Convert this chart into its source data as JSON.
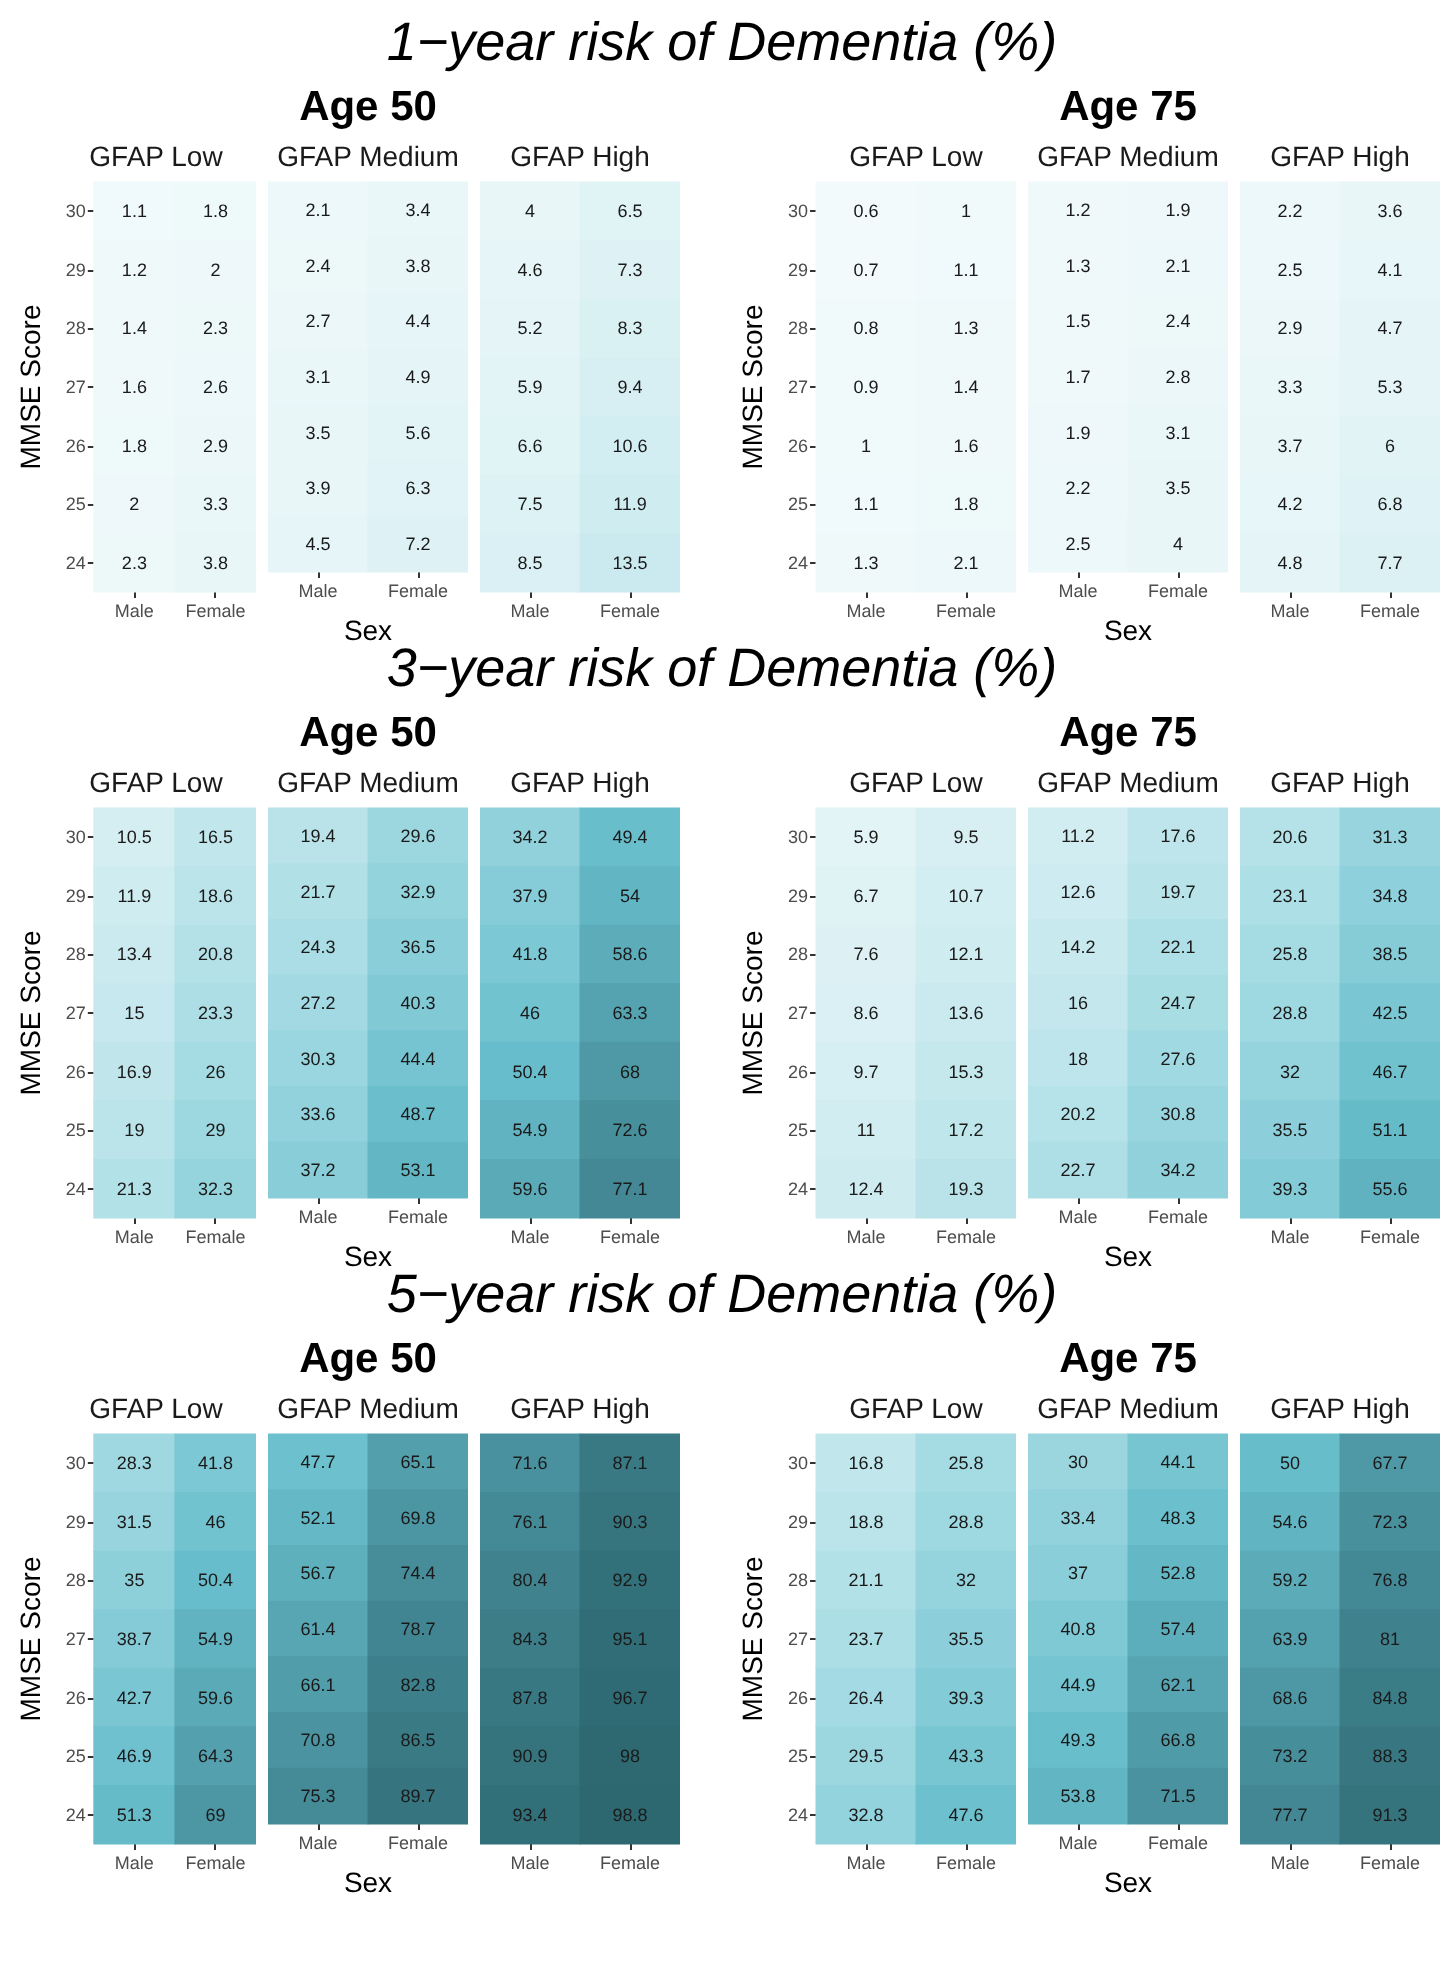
{
  "chart_data": [
    {
      "type": "other",
      "title": "1−year risk of Dementia (%)"
    },
    {
      "type": "other",
      "title": "Age 50"
    },
    {
      "type": "other",
      "title": "Age 75"
    },
    {
      "type": "heatmap",
      "title": "GFAP Low",
      "ylabel": "MMSE Score",
      "categories": [
        "Male",
        "Female"
      ],
      "y_categories": [
        "30",
        "29",
        "28",
        "27",
        "26",
        "25",
        "24"
      ],
      "data_labels": true,
      "cells": [
        [
          1.1,
          1.8
        ],
        [
          1.2,
          2
        ],
        [
          1.4,
          2.3
        ],
        [
          1.6,
          2.6
        ],
        [
          1.8,
          2.9
        ],
        [
          2,
          3.3
        ],
        [
          2.3,
          3.8
        ]
      ]
    },
    {
      "type": "heatmap",
      "title": "GFAP Medium",
      "xlabel": "Sex",
      "tick_labels": "x",
      "categories": [
        "Male",
        "Female"
      ],
      "y_categories": [
        "30",
        "29",
        "28",
        "27",
        "26",
        "25",
        "24"
      ],
      "data_labels": true,
      "cells": [
        [
          2.1,
          3.4
        ],
        [
          2.4,
          3.8
        ],
        [
          2.7,
          4.4
        ],
        [
          3.1,
          4.9
        ],
        [
          3.5,
          5.6
        ],
        [
          3.9,
          6.3
        ],
        [
          4.5,
          7.2
        ]
      ]
    },
    {
      "type": "heatmap",
      "title": "GFAP High",
      "tick_labels": "x",
      "categories": [
        "Male",
        "Female"
      ],
      "y_categories": [
        "30",
        "29",
        "28",
        "27",
        "26",
        "25",
        "24"
      ],
      "data_labels": true,
      "cells": [
        [
          4,
          6.5
        ],
        [
          4.6,
          7.3
        ],
        [
          5.2,
          8.3
        ],
        [
          5.9,
          9.4
        ],
        [
          6.6,
          10.6
        ],
        [
          7.5,
          11.9
        ],
        [
          8.5,
          13.5
        ]
      ]
    },
    {
      "type": "heatmap",
      "title": "GFAP Low",
      "ylabel": "MMSE Score",
      "categories": [
        "Male",
        "Female"
      ],
      "y_categories": [
        "30",
        "29",
        "28",
        "27",
        "26",
        "25",
        "24"
      ],
      "data_labels": true,
      "cells": [
        [
          0.6,
          1
        ],
        [
          0.7,
          1.1
        ],
        [
          0.8,
          1.3
        ],
        [
          0.9,
          1.4
        ],
        [
          1,
          1.6
        ],
        [
          1.1,
          1.8
        ],
        [
          1.3,
          2.1
        ]
      ]
    },
    {
      "type": "heatmap",
      "title": "GFAP Medium",
      "xlabel": "Sex",
      "tick_labels": "x",
      "categories": [
        "Male",
        "Female"
      ],
      "y_categories": [
        "30",
        "29",
        "28",
        "27",
        "26",
        "25",
        "24"
      ],
      "data_labels": true,
      "cells": [
        [
          1.2,
          1.9
        ],
        [
          1.3,
          2.1
        ],
        [
          1.5,
          2.4
        ],
        [
          1.7,
          2.8
        ],
        [
          1.9,
          3.1
        ],
        [
          2.2,
          3.5
        ],
        [
          2.5,
          4
        ]
      ]
    },
    {
      "type": "heatmap",
      "title": "GFAP High",
      "tick_labels": "x",
      "categories": [
        "Male",
        "Female"
      ],
      "y_categories": [
        "30",
        "29",
        "28",
        "27",
        "26",
        "25",
        "24"
      ],
      "data_labels": true,
      "cells": [
        [
          2.2,
          3.6
        ],
        [
          2.5,
          4.1
        ],
        [
          2.9,
          4.7
        ],
        [
          3.3,
          5.3
        ],
        [
          3.7,
          6
        ],
        [
          4.2,
          6.8
        ],
        [
          4.8,
          7.7
        ]
      ]
    },
    {
      "type": "other",
      "title": "3−year risk of Dementia (%)"
    },
    {
      "type": "other",
      "title": "Age 50"
    },
    {
      "type": "other",
      "title": "Age 75"
    },
    {
      "type": "heatmap",
      "title": "GFAP Low",
      "ylabel": "MMSE Score",
      "categories": [
        "Male",
        "Female"
      ],
      "y_categories": [
        "30",
        "29",
        "28",
        "27",
        "26",
        "25",
        "24"
      ],
      "data_labels": true,
      "cells": [
        [
          10.5,
          16.5
        ],
        [
          11.9,
          18.6
        ],
        [
          13.4,
          20.8
        ],
        [
          15,
          23.3
        ],
        [
          16.9,
          26
        ],
        [
          19,
          29
        ],
        [
          21.3,
          32.3
        ]
      ]
    },
    {
      "type": "heatmap",
      "title": "GFAP Medium",
      "xlabel": "Sex",
      "tick_labels": "x",
      "categories": [
        "Male",
        "Female"
      ],
      "y_categories": [
        "30",
        "29",
        "28",
        "27",
        "26",
        "25",
        "24"
      ],
      "data_labels": true,
      "cells": [
        [
          19.4,
          29.6
        ],
        [
          21.7,
          32.9
        ],
        [
          24.3,
          36.5
        ],
        [
          27.2,
          40.3
        ],
        [
          30.3,
          44.4
        ],
        [
          33.6,
          48.7
        ],
        [
          37.2,
          53.1
        ]
      ]
    },
    {
      "type": "heatmap",
      "title": "GFAP High",
      "tick_labels": "x",
      "categories": [
        "Male",
        "Female"
      ],
      "y_categories": [
        "30",
        "29",
        "28",
        "27",
        "26",
        "25",
        "24"
      ],
      "data_labels": true,
      "cells": [
        [
          34.2,
          49.4
        ],
        [
          37.9,
          54
        ],
        [
          41.8,
          58.6
        ],
        [
          46,
          63.3
        ],
        [
          50.4,
          68
        ],
        [
          54.9,
          72.6
        ],
        [
          59.6,
          77.1
        ]
      ]
    },
    {
      "type": "heatmap",
      "title": "GFAP Low",
      "ylabel": "MMSE Score",
      "categories": [
        "Male",
        "Female"
      ],
      "y_categories": [
        "30",
        "29",
        "28",
        "27",
        "26",
        "25",
        "24"
      ],
      "data_labels": true,
      "cells": [
        [
          5.9,
          9.5
        ],
        [
          6.7,
          10.7
        ],
        [
          7.6,
          12.1
        ],
        [
          8.6,
          13.6
        ],
        [
          9.7,
          15.3
        ],
        [
          11,
          17.2
        ],
        [
          12.4,
          19.3
        ]
      ]
    },
    {
      "type": "heatmap",
      "title": "GFAP Medium",
      "xlabel": "Sex",
      "tick_labels": "x",
      "categories": [
        "Male",
        "Female"
      ],
      "y_categories": [
        "30",
        "29",
        "28",
        "27",
        "26",
        "25",
        "24"
      ],
      "data_labels": true,
      "cells": [
        [
          11.2,
          17.6
        ],
        [
          12.6,
          19.7
        ],
        [
          14.2,
          22.1
        ],
        [
          16,
          24.7
        ],
        [
          18,
          27.6
        ],
        [
          20.2,
          30.8
        ],
        [
          22.7,
          34.2
        ]
      ]
    },
    {
      "type": "heatmap",
      "title": "GFAP High",
      "tick_labels": "x",
      "categories": [
        "Male",
        "Female"
      ],
      "y_categories": [
        "30",
        "29",
        "28",
        "27",
        "26",
        "25",
        "24"
      ],
      "data_labels": true,
      "cells": [
        [
          20.6,
          31.3
        ],
        [
          23.1,
          34.8
        ],
        [
          25.8,
          38.5
        ],
        [
          28.8,
          42.5
        ],
        [
          32,
          46.7
        ],
        [
          35.5,
          51.1
        ],
        [
          39.3,
          55.6
        ]
      ]
    },
    {
      "type": "other",
      "title": "5−year risk of Dementia (%)"
    },
    {
      "type": "other",
      "title": "Age 50"
    },
    {
      "type": "other",
      "title": "Age 75"
    },
    {
      "type": "heatmap",
      "title": "GFAP Low",
      "ylabel": "MMSE Score",
      "categories": [
        "Male",
        "Female"
      ],
      "y_categories": [
        "30",
        "29",
        "28",
        "27",
        "26",
        "25",
        "24"
      ],
      "data_labels": true,
      "cells": [
        [
          28.3,
          41.8
        ],
        [
          31.5,
          46
        ],
        [
          35,
          50.4
        ],
        [
          38.7,
          54.9
        ],
        [
          42.7,
          59.6
        ],
        [
          46.9,
          64.3
        ],
        [
          51.3,
          69
        ]
      ]
    },
    {
      "type": "heatmap",
      "title": "GFAP Medium",
      "xlabel": "Sex",
      "tick_labels": "x",
      "categories": [
        "Male",
        "Female"
      ],
      "y_categories": [
        "30",
        "29",
        "28",
        "27",
        "26",
        "25",
        "24"
      ],
      "data_labels": true,
      "cells": [
        [
          47.7,
          65.1
        ],
        [
          52.1,
          69.8
        ],
        [
          56.7,
          74.4
        ],
        [
          61.4,
          78.7
        ],
        [
          66.1,
          82.8
        ],
        [
          70.8,
          86.5
        ],
        [
          75.3,
          89.7
        ]
      ]
    },
    {
      "type": "heatmap",
      "title": "GFAP High",
      "tick_labels": "x",
      "categories": [
        "Male",
        "Female"
      ],
      "y_categories": [
        "30",
        "29",
        "28",
        "27",
        "26",
        "25",
        "24"
      ],
      "data_labels": true,
      "cells": [
        [
          71.6,
          87.1
        ],
        [
          76.1,
          90.3
        ],
        [
          80.4,
          92.9
        ],
        [
          84.3,
          95.1
        ],
        [
          87.8,
          96.7
        ],
        [
          90.9,
          98
        ],
        [
          93.4,
          98.8
        ]
      ]
    },
    {
      "type": "heatmap",
      "title": "GFAP Low",
      "ylabel": "MMSE Score",
      "categories": [
        "Male",
        "Female"
      ],
      "y_categories": [
        "30",
        "29",
        "28",
        "27",
        "26",
        "25",
        "24"
      ],
      "data_labels": true,
      "cells": [
        [
          16.8,
          25.8
        ],
        [
          18.8,
          28.8
        ],
        [
          21.1,
          32
        ],
        [
          23.7,
          35.5
        ],
        [
          26.4,
          39.3
        ],
        [
          29.5,
          43.3
        ],
        [
          32.8,
          47.6
        ]
      ]
    },
    {
      "type": "heatmap",
      "title": "GFAP Medium",
      "xlabel": "Sex",
      "tick_labels": "x",
      "categories": [
        "Male",
        "Female"
      ],
      "y_categories": [
        "30",
        "29",
        "28",
        "27",
        "26",
        "25",
        "24"
      ],
      "data_labels": true,
      "cells": [
        [
          30,
          44.1
        ],
        [
          33.4,
          48.3
        ],
        [
          37,
          52.8
        ],
        [
          40.8,
          57.4
        ],
        [
          44.9,
          62.1
        ],
        [
          49.3,
          66.8
        ],
        [
          53.8,
          71.5
        ]
      ]
    },
    {
      "type": "heatmap",
      "title": "GFAP High",
      "tick_labels": "x",
      "categories": [
        "Male",
        "Female"
      ],
      "y_categories": [
        "30",
        "29",
        "28",
        "27",
        "26",
        "25",
        "24"
      ],
      "data_labels": true,
      "cells": [
        [
          50,
          67.7
        ],
        [
          54.6,
          72.3
        ],
        [
          59.2,
          76.8
        ],
        [
          63.9,
          81
        ],
        [
          68.6,
          84.8
        ],
        [
          73.2,
          88.3
        ],
        [
          77.7,
          91.3
        ]
      ]
    }
  ]
}
